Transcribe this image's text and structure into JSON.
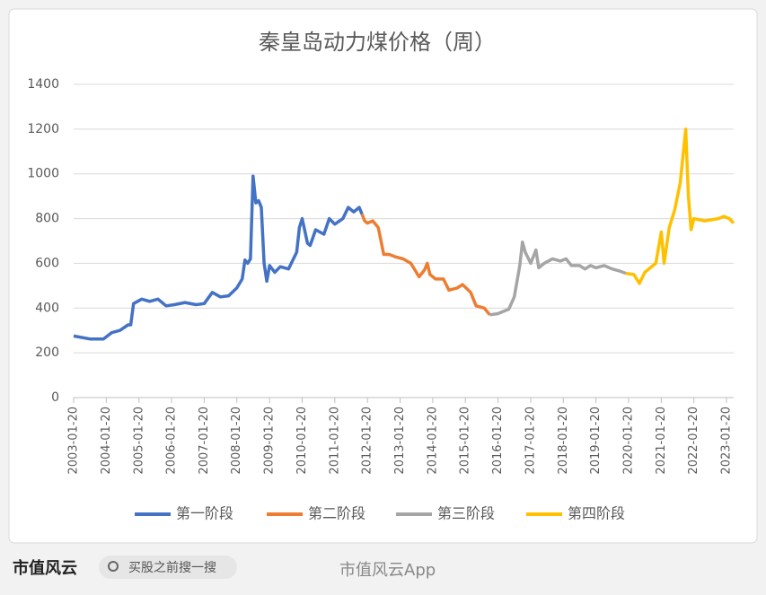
{
  "chart_data": {
    "type": "line",
    "title": "秦皇岛动力煤价格（周）",
    "xlim": [
      "2003-01-20",
      "2023-04-10"
    ],
    "xticks": [
      "2003-01-20",
      "2004-01-20",
      "2005-01-20",
      "2006-01-20",
      "2007-01-20",
      "2008-01-20",
      "2009-01-20",
      "2010-01-20",
      "2011-01-20",
      "2012-01-20",
      "2013-01-20",
      "2014-01-20",
      "2015-01-20",
      "2016-01-20",
      "2017-01-20",
      "2018-01-20",
      "2019-01-20",
      "2020-01-20",
      "2021-01-20",
      "2022-01-20",
      "2023-01-20"
    ],
    "ylim": [
      0,
      1400
    ],
    "yticks": [
      0,
      200,
      400,
      600,
      800,
      1000,
      1200,
      1400
    ],
    "grid": true,
    "legend": "bottom",
    "series": [
      {
        "name": "第一阶段",
        "color": "#4472c4",
        "x": [
          "2003-01-20",
          "2003-07-20",
          "2003-12-20",
          "2004-03-20",
          "2004-06-20",
          "2004-09-20",
          "2004-10-20",
          "2004-11-20",
          "2005-02-20",
          "2005-05-20",
          "2005-08-20",
          "2005-11-20",
          "2006-02-20",
          "2006-06-20",
          "2006-10-20",
          "2007-01-20",
          "2007-04-20",
          "2007-07-20",
          "2007-10-20",
          "2008-01-20",
          "2008-03-20",
          "2008-04-20",
          "2008-05-20",
          "2008-06-20",
          "2008-07-20",
          "2008-08-20",
          "2008-09-20",
          "2008-10-20",
          "2008-11-20",
          "2008-12-20",
          "2009-01-20",
          "2009-03-20",
          "2009-05-20",
          "2009-08-20",
          "2009-11-20",
          "2009-12-20",
          "2010-01-20",
          "2010-03-20",
          "2010-04-20",
          "2010-06-20",
          "2010-09-20",
          "2010-11-20",
          "2011-01-20",
          "2011-04-20",
          "2011-06-20",
          "2011-08-20",
          "2011-10-20",
          "2011-11-20"
        ],
        "values": [
          275,
          262,
          262,
          290,
          300,
          325,
          325,
          420,
          440,
          430,
          440,
          410,
          415,
          425,
          415,
          420,
          470,
          450,
          455,
          490,
          530,
          615,
          600,
          620,
          990,
          870,
          880,
          850,
          600,
          520,
          590,
          560,
          585,
          575,
          650,
          760,
          800,
          690,
          680,
          750,
          730,
          800,
          775,
          800,
          850,
          830,
          850,
          820
        ]
      },
      {
        "name": "第二阶段",
        "color": "#ed7d31",
        "x": [
          "2011-11-20",
          "2011-12-20",
          "2012-01-20",
          "2012-03-20",
          "2012-05-20",
          "2012-06-20",
          "2012-07-20",
          "2012-09-20",
          "2012-11-20",
          "2013-02-20",
          "2013-05-20",
          "2013-07-20",
          "2013-08-20",
          "2013-10-20",
          "2013-11-20",
          "2013-12-20",
          "2014-02-20",
          "2014-05-20",
          "2014-07-20",
          "2014-10-20",
          "2014-12-20",
          "2015-03-20",
          "2015-05-20",
          "2015-08-20",
          "2015-10-20"
        ],
        "values": [
          820,
          790,
          780,
          790,
          760,
          700,
          640,
          640,
          630,
          620,
          600,
          560,
          540,
          570,
          600,
          550,
          530,
          530,
          480,
          490,
          505,
          470,
          410,
          400,
          370
        ]
      },
      {
        "name": "第三阶段",
        "color": "#a5a5a5",
        "x": [
          "2015-10-20",
          "2016-01-20",
          "2016-03-20",
          "2016-05-20",
          "2016-07-20",
          "2016-09-20",
          "2016-10-20",
          "2016-11-20",
          "2017-01-20",
          "2017-03-20",
          "2017-04-20",
          "2017-06-20",
          "2017-09-20",
          "2017-12-20",
          "2018-02-20",
          "2018-04-20",
          "2018-07-20",
          "2018-09-20",
          "2018-11-20",
          "2019-01-20",
          "2019-04-20",
          "2019-07-20",
          "2019-10-20",
          "2019-12-20"
        ],
        "values": [
          370,
          375,
          385,
          395,
          450,
          590,
          695,
          650,
          600,
          660,
          580,
          600,
          620,
          610,
          620,
          590,
          590,
          575,
          590,
          580,
          590,
          575,
          565,
          555
        ]
      },
      {
        "name": "第四阶段",
        "color": "#ffc000",
        "x": [
          "2019-12-20",
          "2020-03-20",
          "2020-05-20",
          "2020-07-20",
          "2020-09-20",
          "2020-11-20",
          "2021-01-20",
          "2021-02-20",
          "2021-04-20",
          "2021-06-20",
          "2021-08-20",
          "2021-10-20",
          "2021-11-20",
          "2021-12-20",
          "2022-01-20",
          "2022-05-20",
          "2022-10-20",
          "2022-12-20",
          "2023-02-20",
          "2023-04-10"
        ],
        "values": [
          555,
          550,
          510,
          560,
          580,
          600,
          740,
          600,
          760,
          840,
          960,
          1200,
          900,
          750,
          800,
          790,
          800,
          810,
          800,
          780
        ]
      }
    ]
  },
  "footer": {
    "logo": "市值风云",
    "search": "买股之前搜一搜",
    "brand": "市值风云App"
  }
}
